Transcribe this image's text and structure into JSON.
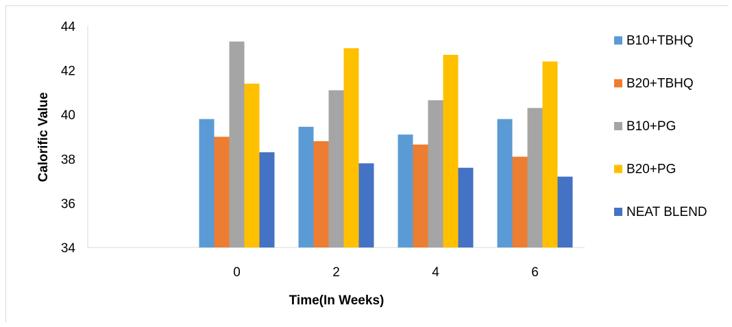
{
  "chart_data": {
    "type": "bar",
    "title": "",
    "xlabel": "Time(In Weeks)",
    "ylabel": "Calorific Value",
    "categories": [
      "",
      "0",
      "2",
      "4",
      "6"
    ],
    "ylim": [
      34,
      44
    ],
    "yticks": [
      34,
      36,
      38,
      40,
      42,
      44
    ],
    "grid": false,
    "legend_position": "right",
    "series": [
      {
        "name": "B10+TBHQ",
        "color": "#5b9bd5",
        "values": [
          null,
          39.8,
          39.45,
          39.1,
          39.8
        ]
      },
      {
        "name": "B20+TBHQ",
        "color": "#ed7d31",
        "values": [
          null,
          39.0,
          38.8,
          38.65,
          38.1
        ]
      },
      {
        "name": "B10+PG",
        "color": "#a5a5a5",
        "values": [
          null,
          43.3,
          41.1,
          40.65,
          40.3
        ]
      },
      {
        "name": "B20+PG",
        "color": "#ffc000",
        "values": [
          null,
          41.4,
          43.0,
          42.7,
          42.4
        ]
      },
      {
        "name": "NEAT BLEND",
        "color": "#4472c4",
        "values": [
          null,
          38.3,
          37.8,
          37.6,
          37.2
        ]
      }
    ]
  }
}
